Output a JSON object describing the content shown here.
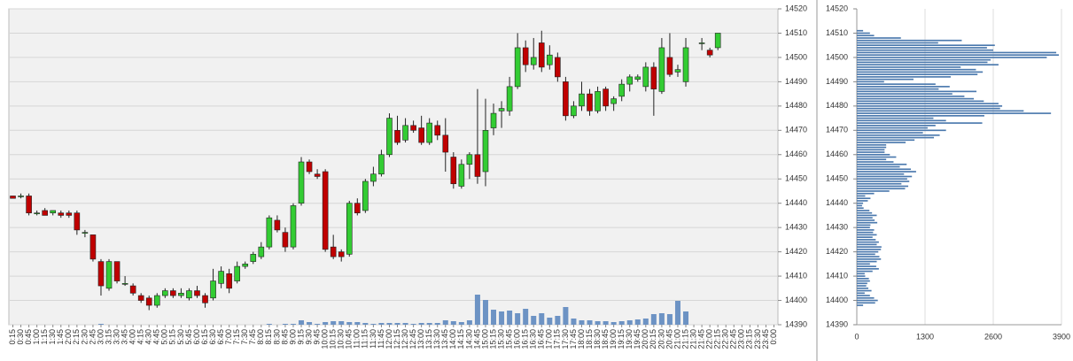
{
  "chart_data": [
    {
      "type": "candlestick",
      "categories": [
        "0:15",
        "0:30",
        "0:45",
        "1:00",
        "1:15",
        "1:30",
        "1:45",
        "2:00",
        "2:15",
        "2:30",
        "2:45",
        "3:00",
        "3:15",
        "3:30",
        "3:45",
        "4:00",
        "4:15",
        "4:30",
        "4:45",
        "5:00",
        "5:15",
        "5:30",
        "5:45",
        "6:00",
        "6:15",
        "6:30",
        "6:45",
        "7:00",
        "7:15",
        "7:30",
        "7:45",
        "8:00",
        "8:15",
        "8:30",
        "8:45",
        "9:00",
        "9:15",
        "9:30",
        "9:45",
        "10:00",
        "10:15",
        "10:30",
        "10:45",
        "11:00",
        "11:15",
        "11:30",
        "11:45",
        "12:00",
        "12:15",
        "12:30",
        "12:45",
        "13:00",
        "13:15",
        "13:30",
        "13:45",
        "14:00",
        "14:15",
        "14:30",
        "14:45",
        "15:00",
        "15:15",
        "15:30",
        "15:45",
        "16:00",
        "16:15",
        "16:30",
        "16:45",
        "17:00",
        "17:15",
        "17:30",
        "17:45",
        "18:00",
        "18:15",
        "18:30",
        "18:45",
        "19:00",
        "19:15",
        "19:30",
        "19:45",
        "20:00",
        "20:15",
        "20:30",
        "20:45",
        "21:00",
        "21:15",
        "21:30",
        "21:45",
        "22:00",
        "22:15",
        "22:30",
        "22:45",
        "23:00",
        "23:15",
        "23:30",
        "23:45",
        "0:00"
      ],
      "open": [
        14443,
        14443,
        14443,
        14436,
        14437,
        14436,
        14436,
        14436,
        14436,
        14428,
        14427,
        14416,
        14405,
        14416,
        14407,
        14406,
        14402,
        14401,
        14398,
        14402,
        14404,
        14402,
        14401,
        14404,
        14402,
        14401,
        14407,
        14411,
        14408,
        14414,
        14416,
        14418,
        14422,
        14433,
        14428,
        14422,
        14440,
        14457,
        14452,
        14453,
        14422,
        14420,
        14419,
        14440,
        14437,
        14449,
        14452,
        14460,
        14470,
        14466,
        14472,
        14471,
        14465,
        14472,
        14468,
        14459,
        14447,
        14456,
        14460,
        14453,
        14471,
        14478,
        14478,
        14488,
        14504,
        14497,
        14506,
        14497,
        14500,
        14490,
        14476,
        14480,
        14485,
        14478,
        14487,
        14481,
        14484,
        14489,
        14491,
        14488,
        14496,
        14486,
        14500,
        14494,
        14490,
        null,
        14506,
        14503,
        14504,
        null,
        null,
        null,
        null,
        null,
        null,
        null
      ],
      "high": [
        14443,
        14444,
        14444,
        14437,
        14438,
        14437,
        14437,
        14437,
        14437,
        14429,
        14427,
        14417,
        14417,
        14416,
        14410,
        14407,
        14403,
        14402,
        14403,
        14405,
        14405,
        14405,
        14405,
        14406,
        14403,
        14413,
        14414,
        14413,
        14416,
        14416,
        14420,
        14424,
        14435,
        14435,
        14430,
        14440,
        14459,
        14458,
        14454,
        14454,
        14427,
        14421,
        14441,
        14442,
        14450,
        14455,
        14462,
        14477,
        14476,
        14475,
        14474,
        14476,
        14475,
        14474,
        14475,
        14461,
        14458,
        14461,
        14487,
        14483,
        14481,
        14482,
        14492,
        14510,
        14507,
        14508,
        14511,
        14505,
        14502,
        14492,
        14482,
        14490,
        14487,
        14488,
        14488,
        14484,
        14491,
        14493,
        14493,
        14498,
        14498,
        14508,
        14510,
        14497,
        14508,
        null,
        14508,
        14504,
        14510,
        null,
        null,
        null,
        null,
        null,
        null,
        null
      ],
      "low": [
        14442,
        14442,
        14435,
        14435,
        14435,
        14435,
        14434,
        14434,
        14427,
        14426,
        14416,
        14402,
        14404,
        14407,
        14406,
        14402,
        14399,
        14396,
        14397,
        14401,
        14401,
        14401,
        14400,
        14401,
        14397,
        14400,
        14405,
        14403,
        14407,
        14413,
        14415,
        14417,
        14421,
        14428,
        14420,
        14421,
        14439,
        14452,
        14450,
        14420,
        14417,
        14416,
        14418,
        14435,
        14436,
        14447,
        14451,
        14459,
        14464,
        14465,
        14469,
        14464,
        14464,
        14466,
        14453,
        14446,
        14446,
        14450,
        14448,
        14447,
        14468,
        14471,
        14476,
        14487,
        14494,
        14495,
        14494,
        14495,
        14490,
        14474,
        14475,
        14478,
        14476,
        14477,
        14478,
        14478,
        14482,
        14486,
        14490,
        14486,
        14476,
        14485,
        14492,
        14492,
        14488,
        null,
        14503,
        14500,
        14503,
        null,
        null,
        null,
        null,
        null,
        null,
        null
      ],
      "close": [
        14442,
        14443,
        14436,
        14436,
        14435,
        14437,
        14435,
        14435,
        14429,
        14428,
        14417,
        14406,
        14416,
        14408,
        14407,
        14403,
        14400,
        14398,
        14402,
        14404,
        14402,
        14403,
        14404,
        14402,
        14399,
        14408,
        14412,
        14405,
        14414,
        14415,
        14419,
        14422,
        14434,
        14429,
        14422,
        14439,
        14457,
        14453,
        14451,
        14421,
        14418,
        14418,
        14440,
        14436,
        14449,
        14452,
        14460,
        14475,
        14465,
        14472,
        14470,
        14465,
        14473,
        14468,
        14461,
        14448,
        14456,
        14460,
        14451,
        14470,
        14477,
        14479,
        14488,
        14504,
        14497,
        14500,
        14496,
        14501,
        14492,
        14476,
        14480,
        14485,
        14478,
        14486,
        14480,
        14483,
        14489,
        14492,
        14492,
        14496,
        14487,
        14504,
        14493,
        14495,
        14504,
        null,
        14506,
        14501,
        14510,
        null,
        null,
        null,
        null,
        null,
        null,
        null
      ],
      "volume": [
        0,
        0,
        0,
        0,
        0,
        0,
        0,
        0,
        0,
        0,
        0,
        1,
        0,
        0,
        0,
        0,
        0,
        0,
        0,
        0,
        0,
        0,
        0,
        0,
        0,
        0,
        0,
        0,
        0,
        0,
        0,
        0,
        1,
        0,
        1,
        1,
        5,
        3,
        1,
        3,
        4,
        4,
        3,
        3,
        2,
        1,
        2,
        2,
        2,
        2,
        1,
        2,
        2,
        2,
        5,
        4,
        3,
        5,
        34,
        28,
        17,
        15,
        16,
        13,
        18,
        10,
        13,
        8,
        10,
        20,
        7,
        5,
        5,
        4,
        4,
        3,
        4,
        5,
        6,
        7,
        12,
        13,
        12,
        27,
        15,
        null,
        0,
        0,
        0,
        null,
        null,
        null,
        null,
        null,
        null,
        null
      ],
      "ylim": [
        14390,
        14520
      ],
      "yticks": [
        14390,
        14400,
        14410,
        14420,
        14430,
        14440,
        14450,
        14460,
        14470,
        14480,
        14490,
        14500,
        14510,
        14520
      ],
      "up_color": "#33cc33",
      "down_color": "#c00000",
      "volume_color": "#6d93c4",
      "grid": true
    },
    {
      "type": "barh",
      "y": [
        14398,
        14399,
        14400,
        14401,
        14402,
        14403,
        14404,
        14405,
        14406,
        14407,
        14408,
        14409,
        14410,
        14411,
        14412,
        14413,
        14414,
        14415,
        14416,
        14417,
        14418,
        14419,
        14420,
        14421,
        14422,
        14423,
        14424,
        14425,
        14426,
        14427,
        14428,
        14429,
        14430,
        14431,
        14432,
        14433,
        14434,
        14435,
        14436,
        14437,
        14438,
        14439,
        14440,
        14441,
        14442,
        14443,
        14444,
        14445,
        14446,
        14447,
        14448,
        14449,
        14450,
        14451,
        14452,
        14453,
        14454,
        14455,
        14456,
        14457,
        14458,
        14459,
        14460,
        14461,
        14462,
        14463,
        14464,
        14465,
        14466,
        14467,
        14468,
        14469,
        14470,
        14471,
        14472,
        14473,
        14474,
        14475,
        14476,
        14477,
        14478,
        14479,
        14480,
        14481,
        14482,
        14483,
        14484,
        14485,
        14486,
        14487,
        14488,
        14489,
        14490,
        14491,
        14492,
        14493,
        14494,
        14495,
        14496,
        14497,
        14498,
        14499,
        14500,
        14501,
        14502,
        14503,
        14504,
        14505,
        14506,
        14507,
        14508,
        14509,
        14510,
        14511
      ],
      "values": [
        120,
        350,
        400,
        330,
        250,
        150,
        280,
        220,
        180,
        200,
        250,
        230,
        160,
        150,
        300,
        420,
        370,
        250,
        380,
        460,
        430,
        350,
        410,
        460,
        470,
        380,
        420,
        360,
        300,
        380,
        310,
        330,
        250,
        260,
        390,
        340,
        300,
        380,
        290,
        240,
        130,
        100,
        120,
        210,
        260,
        160,
        330,
        620,
        920,
        980,
        850,
        1000,
        960,
        1050,
        900,
        1130,
        1030,
        820,
        950,
        700,
        560,
        750,
        630,
        530,
        530,
        560,
        560,
        930,
        1100,
        1470,
        1580,
        1260,
        1700,
        1350,
        1500,
        2390,
        1700,
        1460,
        2430,
        3700,
        3180,
        2730,
        2770,
        2700,
        2420,
        2230,
        2050,
        1820,
        2280,
        1560,
        1770,
        1500,
        520,
        1080,
        1790,
        2300,
        2400,
        2270,
        1980,
        2700,
        2490,
        2550,
        3620,
        3850,
        3800,
        2600,
        2480,
        2630,
        1550,
        2000,
        840,
        330,
        250,
        120
      ],
      "xlim": [
        0,
        3900
      ],
      "xticks": [
        0,
        1300,
        2600,
        3900
      ],
      "ylim": [
        14390,
        14520
      ],
      "yticks": [
        14390,
        14400,
        14410,
        14420,
        14430,
        14440,
        14450,
        14460,
        14470,
        14480,
        14490,
        14500,
        14510,
        14520
      ],
      "color": "#4a78ad",
      "grid": true
    }
  ]
}
